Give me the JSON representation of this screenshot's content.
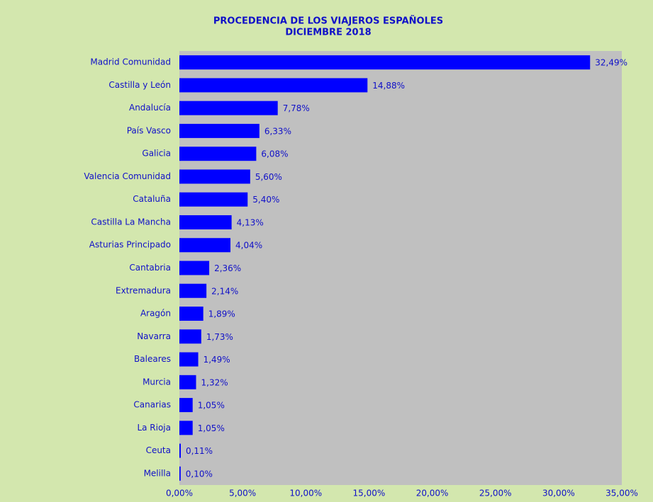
{
  "chart_data": {
    "type": "bar",
    "orientation": "horizontal",
    "title": "PROCEDENCIA DE LOS VIAJEROS ESPAÑOLES",
    "subtitle": "DICIEMBRE 2018",
    "categories": [
      "Madrid Comunidad",
      "Castilla y León",
      "Andalucía",
      "País Vasco",
      "Galicia",
      "Valencia Comunidad",
      "Cataluña",
      "Castilla La Mancha",
      "Asturias Principado",
      "Cantabria",
      "Extremadura",
      "Aragón",
      "Navarra",
      "Baleares",
      "Murcia",
      "Canarias",
      "La Rioja",
      "Ceuta",
      "Melilla"
    ],
    "values": [
      32.49,
      14.88,
      7.78,
      6.33,
      6.08,
      5.6,
      5.4,
      4.13,
      4.04,
      2.36,
      2.14,
      1.89,
      1.73,
      1.49,
      1.32,
      1.05,
      1.05,
      0.11,
      0.1
    ],
    "value_labels": [
      "32,49%",
      "14,88%",
      "7,78%",
      "6,33%",
      "6,08%",
      "5,60%",
      "5,40%",
      "4,13%",
      "4,04%",
      "2,36%",
      "2,14%",
      "1,89%",
      "1,73%",
      "1,49%",
      "1,32%",
      "1,05%",
      "1,05%",
      "0,11%",
      "0,10%"
    ],
    "color": "#0000ff",
    "xlim": [
      0,
      35
    ],
    "xticks": [
      {
        "value": 0,
        "label": "0,00%"
      },
      {
        "value": 5,
        "label": "5,00%"
      },
      {
        "value": 10,
        "label": "10,00%"
      },
      {
        "value": 15,
        "label": "15,00%"
      },
      {
        "value": 20,
        "label": "20,00%"
      },
      {
        "value": 25,
        "label": "25,00%"
      },
      {
        "value": 30,
        "label": "30,00%"
      },
      {
        "value": 35,
        "label": "35,00%"
      }
    ],
    "grid": false
  }
}
